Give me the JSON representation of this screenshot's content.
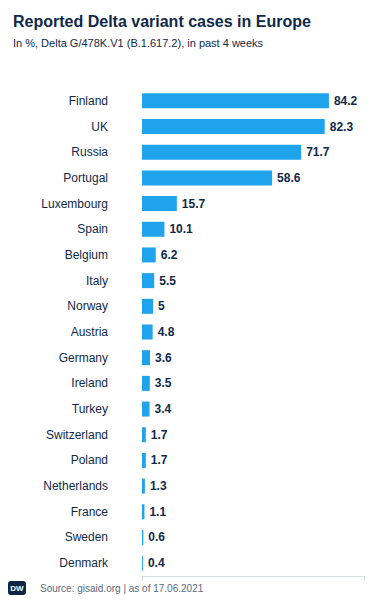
{
  "chart_data": {
    "type": "bar",
    "orientation": "horizontal",
    "title": "Reported Delta variant cases in Europe",
    "subtitle": "In %, Delta G/478K.V1 (B.1.617.2), in past 4 weeks",
    "categories": [
      "Finland",
      "UK",
      "Russia",
      "Portugal",
      "Luxembourg",
      "Spain",
      "Belgium",
      "Italy",
      "Norway",
      "Austria",
      "Germany",
      "Ireland",
      "Turkey",
      "Switzerland",
      "Poland",
      "Netherlands",
      "France",
      "Sweden",
      "Denmark"
    ],
    "values": [
      84.2,
      82.3,
      71.7,
      58.6,
      15.7,
      10.1,
      6.2,
      5.5,
      5,
      4.8,
      3.6,
      3.5,
      3.4,
      1.7,
      1.7,
      1.3,
      1.1,
      0.6,
      0.4
    ],
    "color": "#1fa3ec",
    "xlim": [
      0,
      100
    ],
    "xticks": [
      0,
      100
    ],
    "grid": false,
    "data_labels": true,
    "tick_labels": "y",
    "source": "Source: gisaid.org | as of 17.06.2021",
    "logo": "DW"
  }
}
